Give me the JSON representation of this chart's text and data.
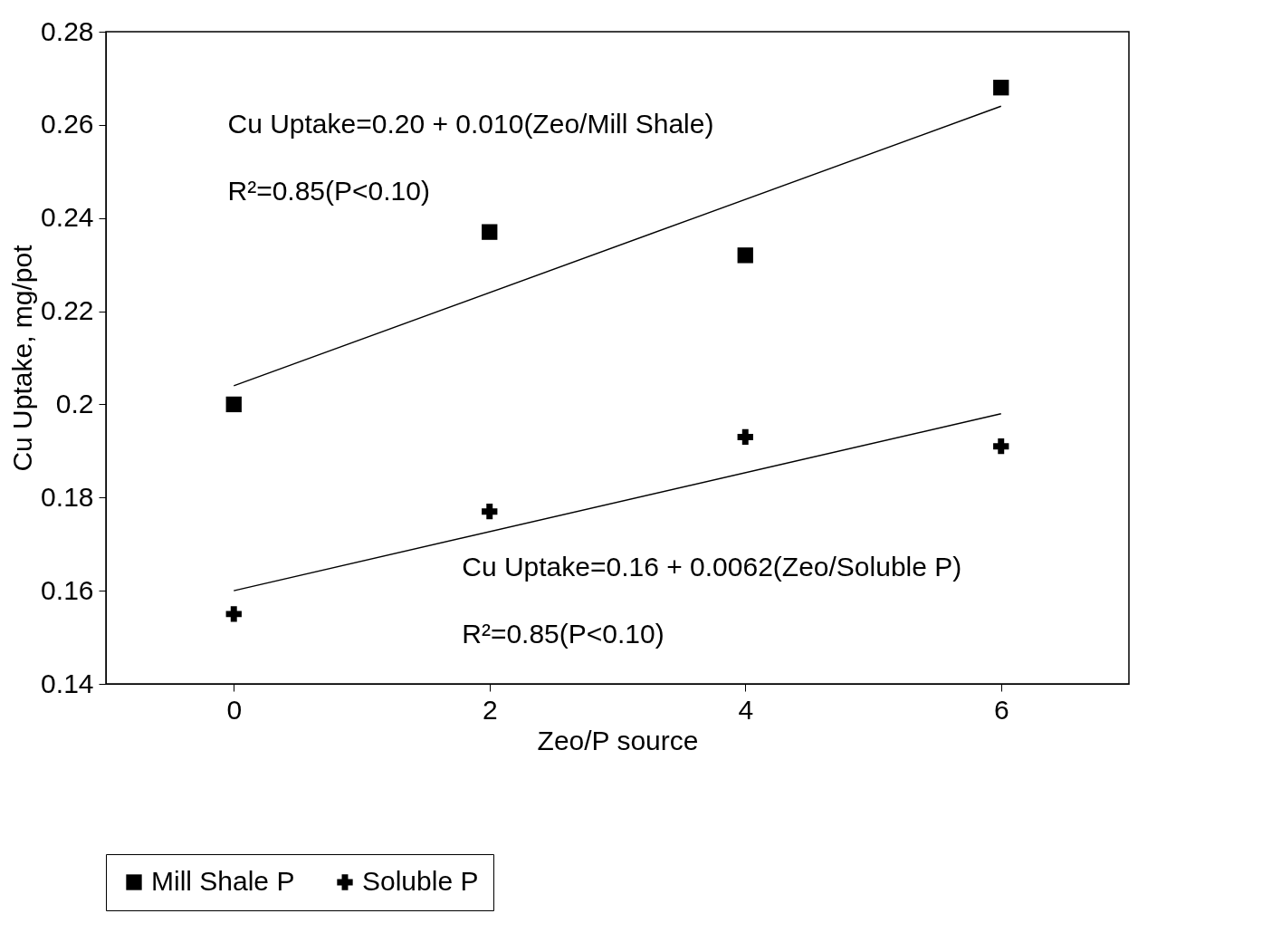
{
  "chart_data": {
    "type": "scatter",
    "xlabel": "Zeo/P source",
    "ylabel": "Cu Uptake, mg/pot",
    "xlim": [
      -1,
      7
    ],
    "xticks": [
      0,
      2,
      4,
      6
    ],
    "ylim": [
      0.14,
      0.28
    ],
    "yticks": [
      0.14,
      0.16,
      0.18,
      0.2,
      0.22,
      0.24,
      0.26,
      0.28
    ],
    "legend": "bottom",
    "series": [
      {
        "name": "Mill Shale P",
        "marker": "square",
        "color": "#000000",
        "x": [
          0,
          2,
          4,
          6
        ],
        "values": [
          0.2,
          0.237,
          0.232,
          0.268
        ]
      },
      {
        "name": "Soluble P",
        "marker": "cross",
        "color": "#000000",
        "x": [
          0,
          2,
          4,
          6
        ],
        "values": [
          0.155,
          0.177,
          0.193,
          0.191
        ]
      },
      {
        "type": "line",
        "color": "#000000",
        "x": [
          0,
          6
        ],
        "values": [
          0.204,
          0.264
        ]
      },
      {
        "type": "line",
        "color": "#000000",
        "x": [
          0,
          6
        ],
        "values": [
          0.16,
          0.198
        ]
      }
    ],
    "annotations": [
      "Cu Uptake=0.20 + 0.010(Zeo/Mill Shale)",
      "R²=0.85(P<0.10)",
      "Cu Uptake=0.16 + 0.0062(Zeo/Soluble P)",
      "R²=0.85(P<0.10)"
    ]
  }
}
